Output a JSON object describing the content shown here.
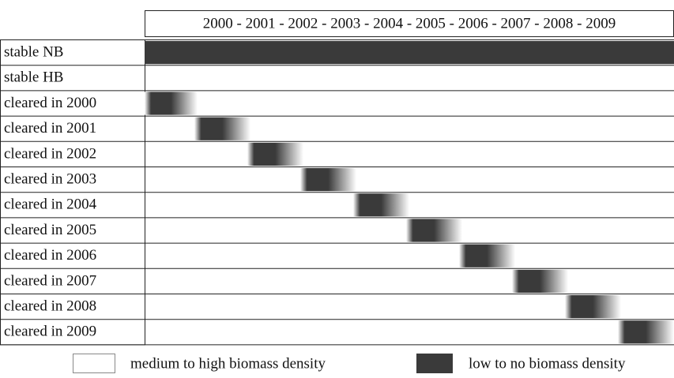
{
  "header": {
    "title": "2000 - 2001 - 2002 - 2003 - 2004 - 2005 - 2006 - 2007 - 2008 - 2009"
  },
  "rows": [
    "stable NB",
    "stable HB",
    "cleared in 2000",
    "cleared in 2001",
    "cleared in 2002",
    "cleared in 2003",
    "cleared in 2004",
    "cleared in 2005",
    "cleared in 2006",
    "cleared in 2007",
    "cleared in 2008",
    "cleared in 2009"
  ],
  "legend": {
    "items": [
      "medium to high biomass density",
      "low to no biomass density"
    ]
  }
}
